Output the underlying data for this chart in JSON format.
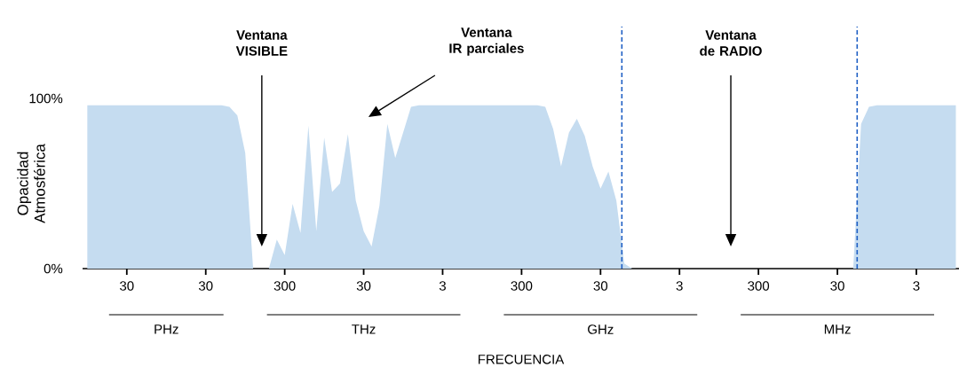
{
  "chart_data": {
    "type": "area",
    "xlabel": "FRECUENCIA",
    "ylabel": "Opacidad Atmosférica",
    "categories": [
      null,
      null,
      null,
      null,
      null,
      "30",
      null,
      null,
      null,
      null,
      null,
      null,
      null,
      null,
      null,
      "30",
      null,
      null,
      null,
      null,
      null,
      null,
      null,
      null,
      null,
      "300",
      null,
      null,
      null,
      null,
      null,
      null,
      null,
      null,
      null,
      "30",
      null,
      null,
      null,
      null,
      null,
      null,
      null,
      null,
      null,
      "3",
      null,
      null,
      null,
      null,
      null,
      null,
      null,
      null,
      null,
      "300",
      null,
      null,
      null,
      null,
      null,
      null,
      null,
      null,
      null,
      "30",
      null,
      null,
      null,
      null,
      null,
      null,
      null,
      null,
      null,
      "3",
      null,
      null,
      null,
      null,
      null,
      null,
      null,
      null,
      null,
      "300",
      null,
      null,
      null,
      null,
      null,
      null,
      null,
      null,
      null,
      "30",
      null,
      null,
      null,
      null,
      null,
      null,
      null,
      null,
      null,
      "3",
      null,
      null,
      null,
      null,
      null
    ],
    "values": [
      96,
      96,
      96,
      96,
      96,
      96,
      96,
      96,
      96,
      96,
      96,
      96,
      96,
      96,
      96,
      96,
      96,
      96,
      95,
      90,
      68,
      0,
      0,
      0,
      17,
      8,
      38,
      21,
      84,
      22,
      77,
      45,
      50,
      79,
      40,
      22,
      13,
      37,
      85,
      65,
      80,
      95,
      96,
      96,
      96,
      96,
      96,
      96,
      96,
      96,
      96,
      96,
      96,
      96,
      96,
      96,
      96,
      96,
      95,
      82,
      60,
      80,
      88,
      78,
      60,
      47,
      57,
      40,
      3,
      0,
      0,
      0,
      0,
      0,
      0,
      0,
      0,
      0,
      0,
      0,
      0,
      0,
      0,
      0,
      0,
      0,
      0,
      0,
      0,
      0,
      0,
      0,
      0,
      0,
      0,
      0,
      0,
      0,
      85,
      95,
      96,
      96,
      96,
      96,
      96,
      96,
      96,
      96,
      96,
      96,
      96
    ],
    "color": "#c5dcf0",
    "ylim": [
      0,
      100
    ],
    "yticks": [
      {
        "value": 0,
        "label": "0%"
      },
      {
        "value": 100,
        "label": "100%"
      }
    ],
    "annotations": [
      "Ventana VISIBLE",
      "Ventana IR parciales",
      "Ventana de RADIO",
      "PHz",
      "THz",
      "GHz",
      "MHz"
    ],
    "grid": false
  }
}
